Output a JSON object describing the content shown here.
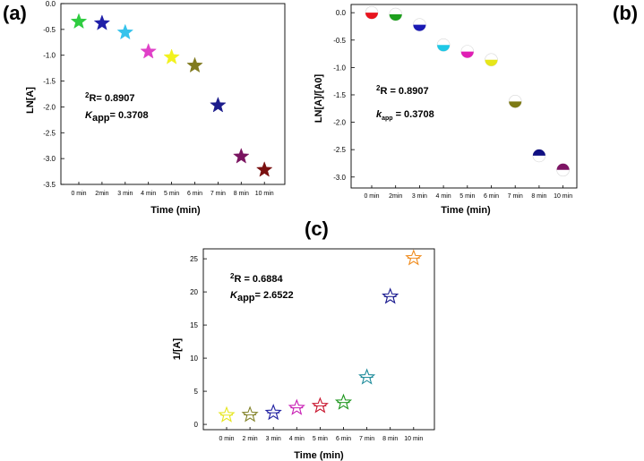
{
  "chart_data": [
    {
      "panel": "(a)",
      "type": "scatter",
      "marker": "filled-star",
      "xlabel": "Time (min)",
      "ylabel": "LN[A]",
      "categories": [
        "0 min",
        "2min",
        "3 min",
        "4 min",
        "5 min",
        "6 min",
        "7 min",
        "8 min",
        "10 min"
      ],
      "values": [
        -0.35,
        -0.38,
        -0.56,
        -0.93,
        -1.04,
        -1.2,
        -1.97,
        -2.96,
        -3.22
      ],
      "colors": [
        "#2ecc40",
        "#1f1fa8",
        "#35c3ec",
        "#e040c8",
        "#f2f21e",
        "#807a1e",
        "#1c1c8c",
        "#7a1460",
        "#7a1010"
      ],
      "ylim": [
        -3.5,
        0.0
      ],
      "yticks": [
        0.0,
        -0.5,
        -1.0,
        -1.5,
        -2.0,
        -2.5,
        -3.0,
        -3.5
      ],
      "ytick_labels": [
        "0.0",
        "-0.5",
        "-1.0",
        "-1.5",
        "-2.0",
        "-2.5",
        "-3.0",
        "-3.5"
      ],
      "annotations": {
        "r2_sup": "2",
        "r2": "R= 0.8907",
        "k_sym": "K",
        "k_sub": "app",
        "k_val": "= 0.3708"
      }
    },
    {
      "panel": "(b)",
      "type": "scatter",
      "marker": "half-filled-circle",
      "xlabel": "Time (min)",
      "ylabel": "LN[A]/[A0]",
      "categories": [
        "0 min",
        "2min",
        "3 min",
        "4 min",
        "5 min",
        "6 min",
        "7 min",
        "8 min",
        "10 min"
      ],
      "values": [
        0.0,
        -0.03,
        -0.22,
        -0.59,
        -0.71,
        -0.86,
        -1.62,
        -2.61,
        -2.87
      ],
      "colors": [
        "#e8141e",
        "#1ea01e",
        "#1a1ab4",
        "#1ec8e6",
        "#e01eb4",
        "#e6e61a",
        "#7d7a14",
        "#0f0f82",
        "#7d1464"
      ],
      "ylim": [
        -3.2,
        0.15
      ],
      "yticks": [
        0.0,
        -0.5,
        -1.0,
        -1.5,
        -2.0,
        -2.5,
        -3.0
      ],
      "ytick_labels": [
        "0.0",
        "-0.5",
        "-1.0",
        "-1.5",
        "-2.0",
        "-2.5",
        "-3.0"
      ],
      "annotations": {
        "r2_sup": "2",
        "r2": "R = 0.8907",
        "k_sym": "k",
        "k_sub": "app",
        "k_val": "= 0.3708"
      }
    },
    {
      "panel": "(c)",
      "type": "scatter",
      "marker": "open-star",
      "xlabel": "Time (min)",
      "ylabel": "1/[A]",
      "categories": [
        "0 min",
        "2 min",
        "3 min",
        "4 min",
        "5 min",
        "6 min",
        "7 min",
        "8 min",
        "10 min"
      ],
      "values": [
        1.4,
        1.45,
        1.75,
        2.5,
        2.8,
        3.3,
        7.1,
        19.3,
        25.1
      ],
      "colors": [
        "#e6e61e",
        "#828228",
        "#1e1ea0",
        "#c81eb4",
        "#c8142d",
        "#1e961e",
        "#1e8c9b",
        "#14148c",
        "#f08c1e"
      ],
      "ylim": [
        -0.8,
        26.5
      ],
      "yticks": [
        0,
        5,
        10,
        15,
        20,
        25
      ],
      "ytick_labels": [
        "0",
        "5",
        "10",
        "15",
        "20",
        "25"
      ],
      "annotations": {
        "r2_sup": "2",
        "r2": "R = 0.6884",
        "k_sym": "K",
        "k_sub": "app",
        "k_val": "= 2.6522"
      }
    }
  ]
}
